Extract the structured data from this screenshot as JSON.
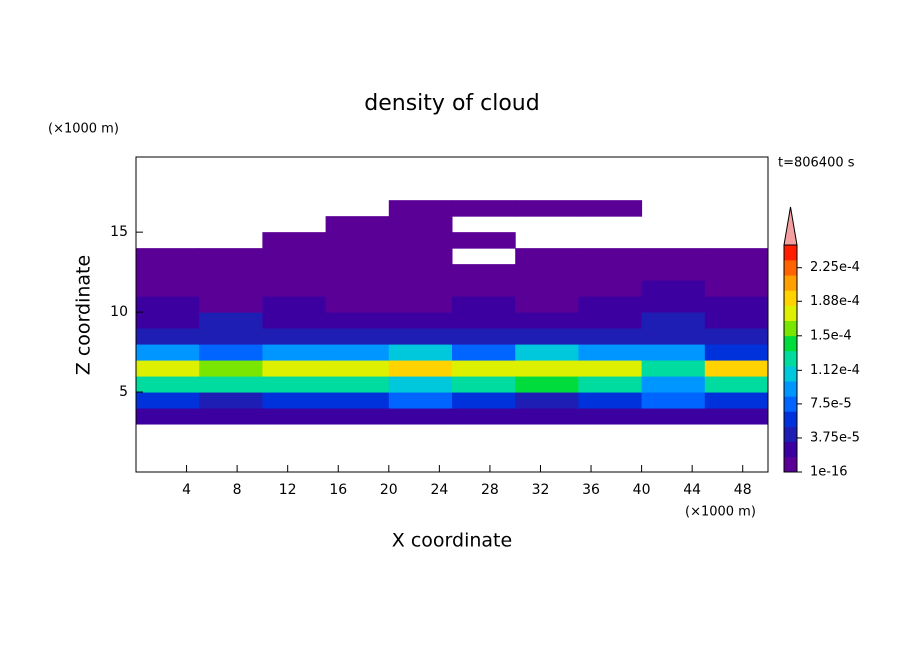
{
  "chart_data": {
    "type": "heatmap",
    "title": "density of cloud",
    "x_label": "X coordinate",
    "y_label": "Z coordinate",
    "x_unit": "(×1000 m)",
    "y_unit": "(×1000 m)",
    "time_label": "t=806400 s",
    "xlim": [
      0,
      50
    ],
    "xticks": [
      4,
      8,
      12,
      16,
      20,
      24,
      28,
      32,
      36,
      40,
      44,
      48
    ],
    "ylim": [
      0,
      19.7
    ],
    "yticks": [
      5,
      10,
      15
    ],
    "x": [
      2.5,
      7.5,
      12.5,
      17.5,
      22.5,
      27.5,
      32.5,
      37.5,
      42.5,
      47.5
    ],
    "y": [
      3.5,
      4.5,
      5.5,
      6.5,
      7.5,
      8.5,
      9.5,
      10.5,
      11.5,
      12.5,
      13.5,
      14.5,
      15.5,
      16.5
    ],
    "values": [
      [
        2e-05,
        2.5e-05,
        2e-05,
        2e-05,
        3e-05,
        2e-05,
        2.5e-05,
        2e-05,
        3e-05,
        2e-05
      ],
      [
        6e-05,
        5e-05,
        6e-05,
        5.5e-05,
        7e-05,
        6e-05,
        5e-05,
        6e-05,
        7e-05,
        5.5e-05
      ],
      [
        0.00013,
        0.00012,
        0.00013,
        0.000125,
        0.00011,
        0.00013,
        0.000135,
        0.00013,
        0.0001,
        0.00013
      ],
      [
        0.000175,
        0.00016,
        0.00017,
        0.00018,
        0.000185,
        0.00017,
        0.00018,
        0.000175,
        0.00013,
        0.00019
      ],
      [
        9e-05,
        8e-05,
        0.0001,
        9e-05,
        0.00011,
        8e-05,
        0.00011,
        0.0001,
        9e-05,
        6e-05
      ],
      [
        4e-05,
        4.5e-05,
        5e-05,
        3.5e-05,
        4e-05,
        4e-05,
        5e-05,
        4e-05,
        4.5e-05,
        4e-05
      ],
      [
        3e-05,
        3.5e-05,
        2.5e-05,
        3e-05,
        2e-05,
        3e-05,
        2.5e-05,
        3e-05,
        3.5e-05,
        3e-05
      ],
      [
        2e-05,
        1.5e-05,
        2e-05,
        1.5e-05,
        1e-05,
        2e-05,
        1.5e-05,
        2e-05,
        2.5e-05,
        2e-05
      ],
      [
        1.5e-05,
        1e-05,
        1.2e-05,
        1e-05,
        1.5e-05,
        1.5e-05,
        1e-05,
        1.5e-05,
        2e-05,
        1.5e-05
      ],
      [
        8e-06,
        6e-06,
        8e-06,
        6e-06,
        8e-06,
        5e-06,
        6e-06,
        8e-06,
        1e-05,
        8e-06
      ],
      [
        5e-06,
        4e-06,
        5e-06,
        4e-06,
        5e-06,
        null,
        4e-06,
        5e-06,
        5e-06,
        5e-06
      ],
      [
        null,
        null,
        3e-06,
        3e-06,
        3e-06,
        3e-06,
        null,
        null,
        null,
        null
      ],
      [
        null,
        null,
        null,
        2e-06,
        2e-06,
        null,
        null,
        null,
        null,
        null
      ],
      [
        null,
        null,
        null,
        null,
        2e-06,
        2e-06,
        2e-06,
        2e-06,
        null,
        null
      ]
    ],
    "colorbar": {
      "clim": [
        1e-16,
        0.00025
      ],
      "colors": [
        "#5a0096",
        "#3c00a0",
        "#1e1eb4",
        "#0032dc",
        "#0064ff",
        "#0096ff",
        "#00c8dc",
        "#00dca0",
        "#00dc3c",
        "#78e600",
        "#dcf000",
        "#ffd200",
        "#ffa000",
        "#ff6400",
        "#ff1e00"
      ],
      "extend_color": "#f4a0a0",
      "ticks": [
        {
          "value": 1e-16,
          "label": "1e-16"
        },
        {
          "value": 3.75e-05,
          "label": "3.75e-5"
        },
        {
          "value": 7.5e-05,
          "label": "7.5e-5"
        },
        {
          "value": 0.000112,
          "label": "1.12e-4"
        },
        {
          "value": 0.00015,
          "label": "1.5e-4"
        },
        {
          "value": 0.000188,
          "label": "1.88e-4"
        },
        {
          "value": 0.000225,
          "label": "2.25e-4"
        }
      ]
    }
  }
}
